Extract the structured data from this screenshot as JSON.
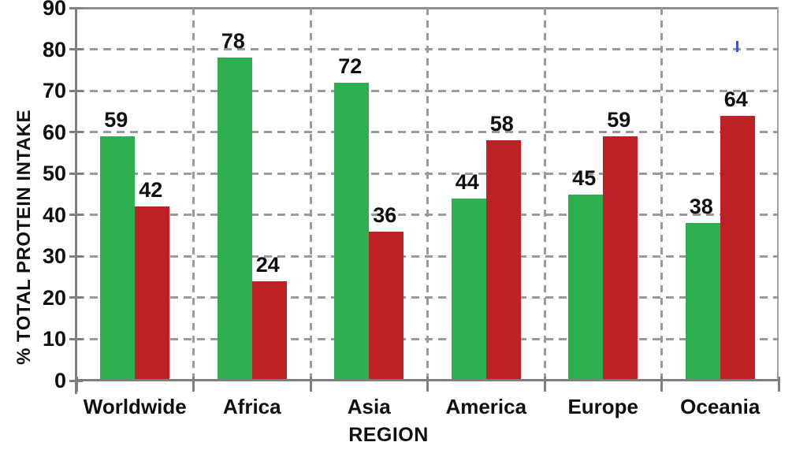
{
  "chart_data": {
    "type": "bar",
    "title": "",
    "xlabel": "REGION",
    "ylabel": "% TOTAL PROTEIN INTAKE",
    "categories": [
      "Worldwide",
      "Africa",
      "Asia",
      "America",
      "Europe",
      "Oceania"
    ],
    "series": [
      {
        "name": "green",
        "color": "#2DAF50",
        "values": [
          59,
          78,
          72,
          44,
          45,
          38
        ]
      },
      {
        "name": "red",
        "color": "#BE2026",
        "values": [
          42,
          24,
          36,
          58,
          59,
          64
        ]
      }
    ],
    "ylim": [
      0,
      90
    ],
    "yticks": [
      0,
      10,
      20,
      30,
      40,
      50,
      60,
      70,
      80,
      90
    ],
    "grid": "dashed",
    "legend": "none",
    "value_labels": true,
    "colors": {
      "grid": "#9a9a9a",
      "axis": "#7f7f7f",
      "text": "#101014"
    }
  }
}
